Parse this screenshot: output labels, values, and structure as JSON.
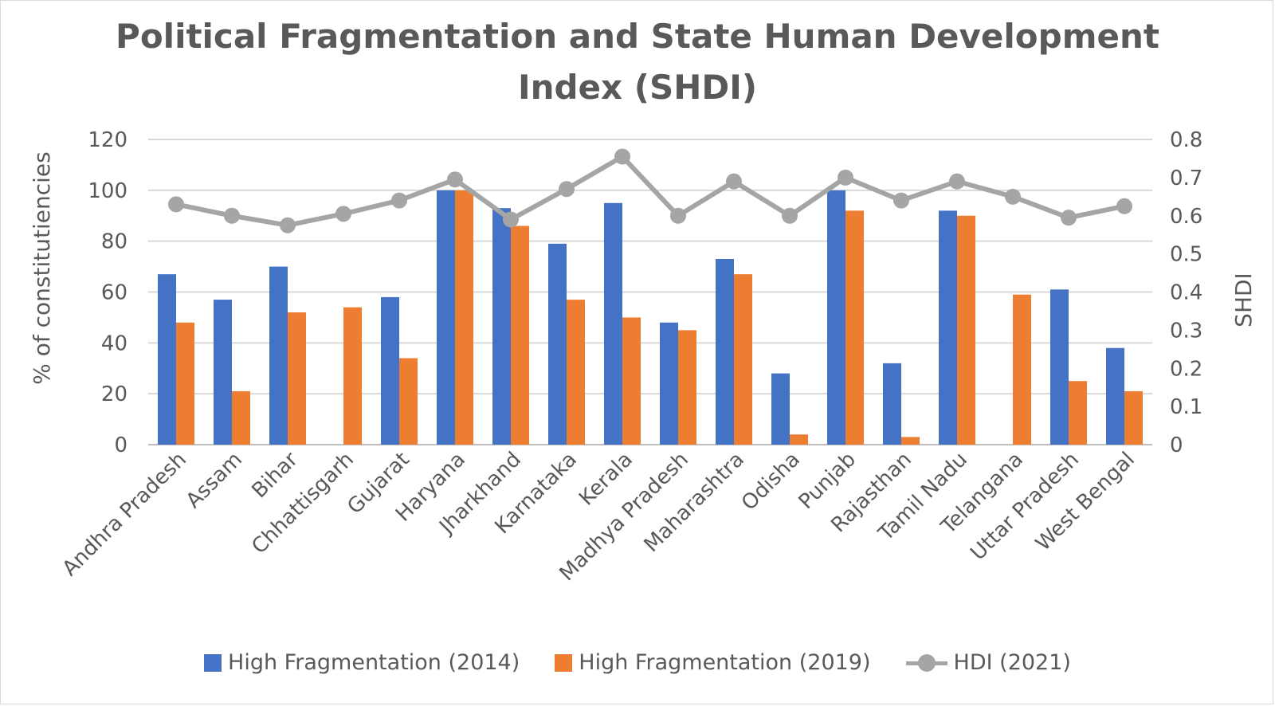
{
  "chart_data": {
    "type": "bar",
    "title_lines": [
      "Political Fragmentation and State Human Development",
      "Index (SHDI)"
    ],
    "xlabel": "",
    "ylabel": "% of constitutiencies",
    "y2label": "SHDI",
    "ylim": [
      0,
      120
    ],
    "y_ticks": [
      "0",
      "20",
      "40",
      "60",
      "80",
      "100",
      "120"
    ],
    "y2lim": [
      0,
      0.8
    ],
    "y2_ticks": [
      "0",
      "0.1",
      "0.2",
      "0.3",
      "0.4",
      "0.5",
      "0.6",
      "0.7",
      "0.8"
    ],
    "grid": true,
    "legend_position": "bottom",
    "categories": [
      "Andhra Pradesh",
      "Assam",
      "Bihar",
      "Chhattisgarh",
      "Gujarat",
      "Haryana",
      "Jharkhand",
      "Karnataka",
      "Kerala",
      "Madhya Pradesh",
      "Maharashtra",
      "Odisha",
      "Punjab",
      "Rajasthan",
      "Tamil Nadu",
      "Telangana",
      "Uttar Pradesh",
      "West Bengal"
    ],
    "series": [
      {
        "name": "High Fragmentation (2014)",
        "type": "bar",
        "axis": "left",
        "color": "#4472c4",
        "values": [
          67,
          57,
          70,
          null,
          58,
          100,
          93,
          79,
          95,
          48,
          73,
          28,
          100,
          32,
          92,
          null,
          61,
          38
        ]
      },
      {
        "name": "High Fragmentation (2019)",
        "type": "bar",
        "axis": "left",
        "color": "#ed7d31",
        "values": [
          48,
          21,
          52,
          54,
          34,
          100,
          86,
          57,
          50,
          45,
          67,
          4,
          92,
          3,
          90,
          59,
          25,
          21
        ]
      },
      {
        "name": "HDI (2021)",
        "type": "line",
        "axis": "right",
        "color": "#a5a5a5",
        "values": [
          0.63,
          0.6,
          0.575,
          0.605,
          0.64,
          0.695,
          0.59,
          0.67,
          0.755,
          0.6,
          0.69,
          0.6,
          0.7,
          0.64,
          0.69,
          0.65,
          0.595,
          0.625
        ]
      }
    ]
  }
}
